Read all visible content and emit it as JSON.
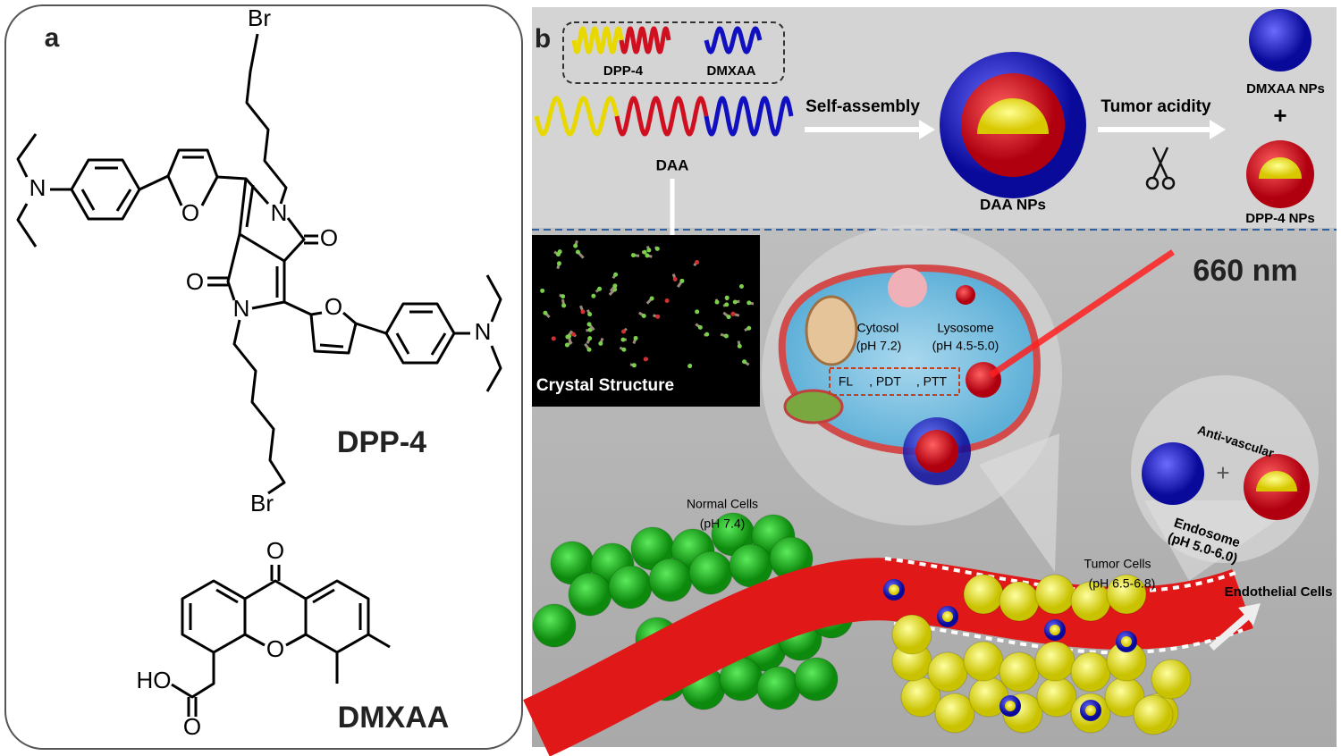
{
  "panel_a": {
    "label": "a",
    "dpp4": {
      "atoms": [
        "Br",
        "N",
        "O",
        "N",
        "O",
        "O",
        "N",
        "O",
        "N",
        "Br"
      ],
      "name": "DPP-4"
    },
    "dmxaa": {
      "atoms": [
        "O",
        "O",
        "HO",
        "O"
      ],
      "name": "DMXAA"
    }
  },
  "panel_b": {
    "label": "b",
    "legend": [
      "DPP-4",
      "DMXAA"
    ],
    "precursor": "DAA",
    "step1": "Self-assembly",
    "assembly": "DAA NPs",
    "step2": "Tumor acidity",
    "products": [
      "DMXAA NPs",
      "+",
      "DPP-4 NPs"
    ],
    "laser": "660 nm",
    "crystal": "Crystal Structure",
    "cell": {
      "cytosol": [
        "Cytosol",
        "(pH 7.2)"
      ],
      "lysosome": [
        "Lysosome",
        "(pH 4.5-5.0)"
      ],
      "effects": [
        "FL",
        ", PDT",
        ", PTT"
      ]
    },
    "inset": {
      "title": "Anti-vascular",
      "plus": "+",
      "endosome": [
        "Endosome",
        "(pH 5.0-6.0)"
      ]
    },
    "normal_cells": [
      "Normal Cells",
      "(pH 7.4)"
    ],
    "tumor_cells": [
      "Tumor Cells",
      "(pH 6.5-6.8)"
    ],
    "endothelial": "Endothelial Cells"
  }
}
